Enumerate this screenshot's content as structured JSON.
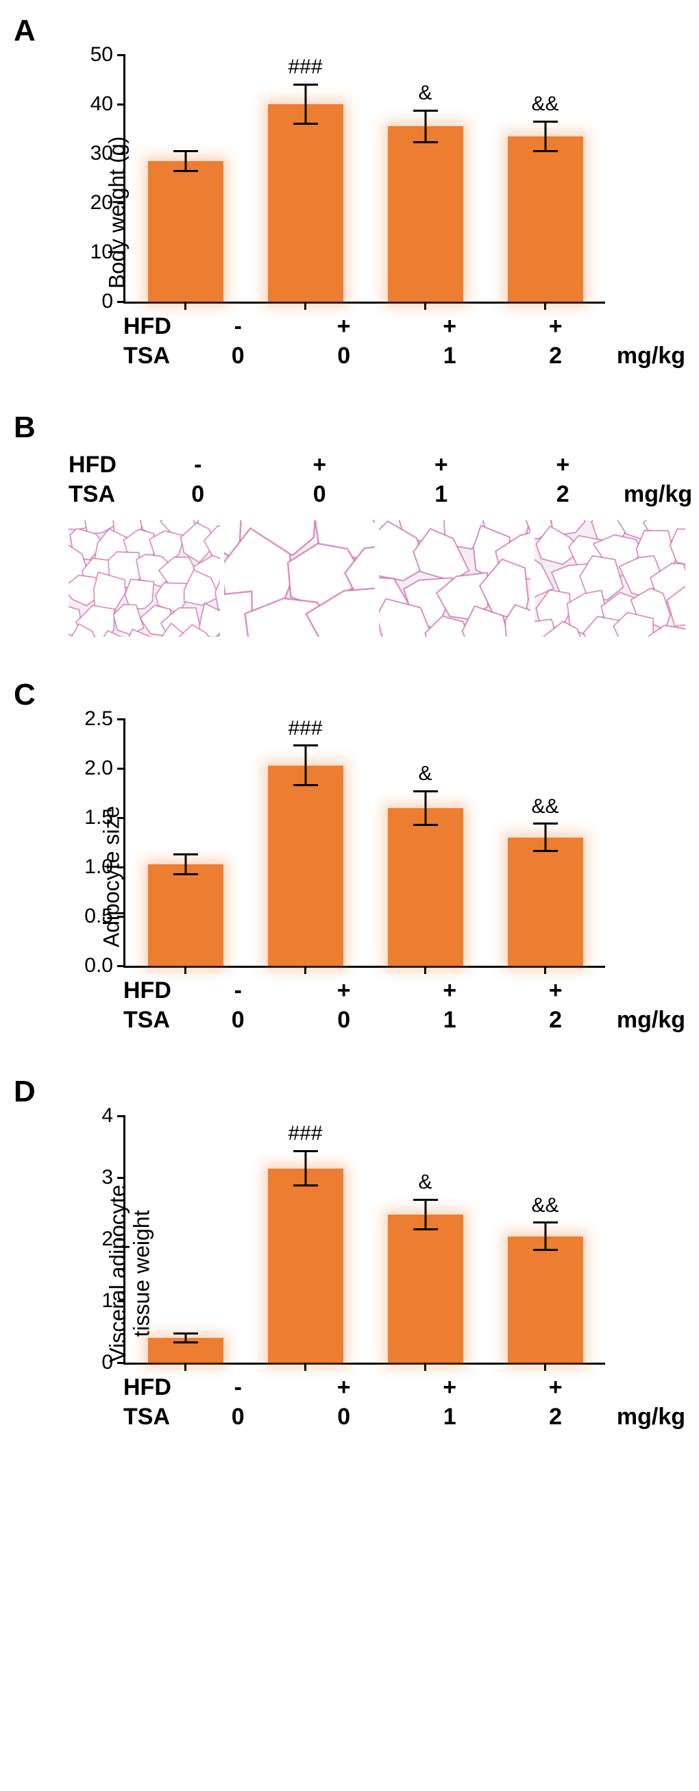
{
  "panels": {
    "A": {
      "label": "A",
      "type": "bar",
      "ylabel": "Body weight (g)",
      "ylim": [
        0,
        50
      ],
      "yticks": [
        0,
        10,
        20,
        30,
        40,
        50
      ],
      "categories": [
        {
          "hfd": "-",
          "tsa": "0"
        },
        {
          "hfd": "+",
          "tsa": "0"
        },
        {
          "hfd": "+",
          "tsa": "1"
        },
        {
          "hfd": "+",
          "tsa": "2"
        }
      ],
      "values": [
        28.5,
        40.0,
        35.5,
        33.5
      ],
      "err": [
        2.0,
        4.0,
        3.2,
        3.0
      ],
      "sig": [
        "",
        "###",
        "&",
        "&&"
      ],
      "bar_color": "#ed7d31",
      "glow_color": "rgba(237,125,49,0.35)",
      "axis_color": "#000000",
      "tick_fontsize": 30,
      "label_fontsize": 32,
      "sig_fontsize": 30,
      "x_row1_label": "HFD",
      "x_row2_label": "TSA",
      "x_unit": "mg/kg"
    },
    "B": {
      "label": "B",
      "type": "infographic",
      "categories": [
        {
          "hfd": "-",
          "tsa": "0"
        },
        {
          "hfd": "+",
          "tsa": "0"
        },
        {
          "hfd": "+",
          "tsa": "1"
        },
        {
          "hfd": "+",
          "tsa": "2"
        }
      ],
      "x_row1_label": "HFD",
      "x_row2_label": "TSA",
      "x_unit": "mg/kg",
      "histology_bg": "#f7eef5",
      "histology_cell_stroke": "#c86aa5",
      "histology_cell_fill": "#ffffff",
      "relative_cell_size": [
        1.0,
        2.2,
        1.5,
        1.2
      ]
    },
    "C": {
      "label": "C",
      "type": "bar",
      "ylabel": "Adipocyte size",
      "ylim": [
        0,
        2.5
      ],
      "yticks": [
        0,
        0.5,
        1.0,
        1.5,
        2.0,
        2.5
      ],
      "categories": [
        {
          "hfd": "-",
          "tsa": "0"
        },
        {
          "hfd": "+",
          "tsa": "0"
        },
        {
          "hfd": "+",
          "tsa": "1"
        },
        {
          "hfd": "+",
          "tsa": "2"
        }
      ],
      "values": [
        1.03,
        2.03,
        1.6,
        1.3
      ],
      "err": [
        0.1,
        0.2,
        0.17,
        0.14
      ],
      "sig": [
        "",
        "###",
        "&",
        "&&"
      ],
      "bar_color": "#ed7d31",
      "glow_color": "rgba(237,125,49,0.35)",
      "axis_color": "#000000",
      "tick_fontsize": 30,
      "label_fontsize": 32,
      "sig_fontsize": 30,
      "x_row1_label": "HFD",
      "x_row2_label": "TSA",
      "x_unit": "mg/kg"
    },
    "D": {
      "label": "D",
      "type": "bar",
      "ylabel_line1": "Visceral adipocyte",
      "ylabel_line2": "tissue weight",
      "ylim": [
        0,
        4
      ],
      "yticks": [
        0,
        1,
        2,
        3,
        4
      ],
      "categories": [
        {
          "hfd": "-",
          "tsa": "0"
        },
        {
          "hfd": "+",
          "tsa": "0"
        },
        {
          "hfd": "+",
          "tsa": "1"
        },
        {
          "hfd": "+",
          "tsa": "2"
        }
      ],
      "values": [
        0.4,
        3.15,
        2.4,
        2.05
      ],
      "err": [
        0.07,
        0.28,
        0.24,
        0.22
      ],
      "sig": [
        "",
        "###",
        "&",
        "&&"
      ],
      "bar_color": "#ed7d31",
      "glow_color": "rgba(237,125,49,0.35)",
      "axis_color": "#000000",
      "tick_fontsize": 30,
      "label_fontsize": 32,
      "sig_fontsize": 30,
      "x_row1_label": "HFD",
      "x_row2_label": "TSA",
      "x_unit": "mg/kg"
    }
  }
}
